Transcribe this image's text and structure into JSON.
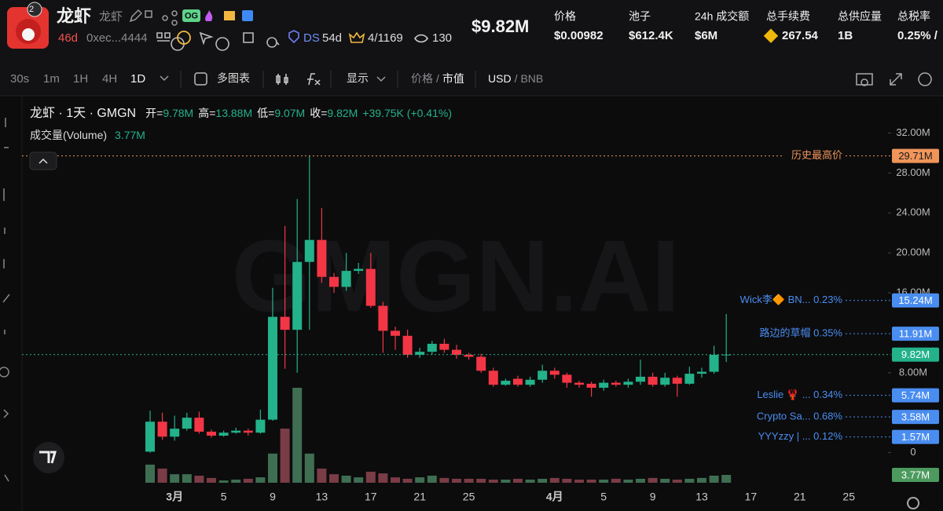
{
  "header": {
    "badge": "2",
    "title": "龙虾",
    "subtitle": "龙虾",
    "tag": "OG",
    "age": "46d",
    "address": "0xec...4444",
    "ds": "DS",
    "ds_age": "54d",
    "rank": "4/1169",
    "watchers": "130",
    "market_cap": "$9.82M",
    "stats": [
      {
        "label": "价格",
        "value": "$0.00982"
      },
      {
        "label": "池子",
        "value": "$612.4K"
      },
      {
        "label": "24h 成交额",
        "value": "$6M"
      },
      {
        "label": "总手续费",
        "value": "267.54"
      },
      {
        "label": "总供应量",
        "value": "1B"
      },
      {
        "label": "总税率",
        "value": "0.25% /"
      }
    ]
  },
  "toolbar": {
    "intervals": [
      "30s",
      "1m",
      "1H",
      "4H",
      "1D"
    ],
    "active_interval": 4,
    "multi_chart": "多图表",
    "display": "显示",
    "separator": "/",
    "price_toggle": [
      "价格",
      "市值"
    ],
    "currency_toggle": [
      "USD",
      "BNB"
    ]
  },
  "legend": {
    "symbol": "龙虾 · 1天 · GMGN",
    "ohlc": [
      {
        "label": "开=",
        "value": "9.78M"
      },
      {
        "label": "高=",
        "value": "13.88M"
      },
      {
        "label": "低=",
        "value": "9.07M"
      },
      {
        "label": "收=",
        "value": "9.82M"
      }
    ],
    "change": "+39.75K (+0.41%)",
    "volume_label": "成交量(Volume)",
    "volume_value": "3.77M",
    "watermark": "GMGN.AI"
  },
  "chart_data": {
    "type": "candlestick",
    "categories": [
      null,
      null,
      "3月",
      null,
      null,
      null,
      "5",
      null,
      null,
      null,
      "9",
      null,
      null,
      null,
      "13",
      null,
      null,
      null,
      "17",
      null,
      null,
      null,
      "21",
      null,
      null,
      null,
      "25",
      null,
      null,
      null,
      null,
      null,
      null,
      "4月",
      null,
      null,
      null,
      "5",
      null,
      null,
      null,
      "9",
      null,
      null,
      null,
      "13",
      null,
      null,
      null,
      "17",
      null,
      null,
      null,
      "21",
      null,
      null,
      null,
      "25"
    ],
    "open": [
      0.1,
      3.1,
      1.6,
      2.4,
      3.5,
      2.1,
      1.7,
      2.0,
      2.2,
      2.0,
      3.3,
      13.6,
      12.3,
      19.1,
      21.3,
      17.6,
      16.6,
      18.2,
      18.4,
      14.7,
      12.2,
      11.7,
      9.8,
      10.1,
      10.9,
      10.3,
      9.8,
      9.6,
      8.2,
      6.8,
      7.4,
      6.8,
      7.3,
      8.2,
      7.8,
      7.0,
      6.9,
      6.5,
      7.0,
      6.8,
      7.1,
      7.6,
      6.8,
      7.5,
      6.9,
      7.9,
      8.1,
      9.78,
      null,
      null,
      null,
      null,
      null,
      null,
      null,
      null,
      null,
      null
    ],
    "high": [
      4.2,
      4.0,
      3.7,
      4.0,
      4.1,
      2.3,
      2.2,
      2.5,
      2.4,
      4.3,
      16.5,
      22.7,
      25.4,
      29.71,
      24.5,
      18.0,
      20.0,
      19.0,
      20.0,
      15.1,
      12.6,
      12.3,
      10.5,
      11.2,
      11.4,
      10.8,
      10.0,
      9.9,
      8.5,
      7.4,
      7.7,
      7.6,
      8.8,
      8.5,
      8.0,
      7.2,
      7.1,
      7.3,
      7.2,
      7.4,
      9.3,
      8.0,
      8.0,
      7.7,
      8.6,
      8.5,
      10.7,
      13.88,
      null,
      null,
      null,
      null,
      null,
      null,
      null,
      null,
      null,
      null
    ],
    "low": [
      0.0,
      1.3,
      1.2,
      2.2,
      1.9,
      1.5,
      1.6,
      1.9,
      1.7,
      1.9,
      3.2,
      8.4,
      8.0,
      12.3,
      17.0,
      16.0,
      16.2,
      17.9,
      14.5,
      10.0,
      10.3,
      9.5,
      9.5,
      9.8,
      10.0,
      9.4,
      9.3,
      8.0,
      6.6,
      6.7,
      6.6,
      6.6,
      7.0,
      7.4,
      6.5,
      6.5,
      5.6,
      6.2,
      6.6,
      6.5,
      6.8,
      6.6,
      6.6,
      5.6,
      6.8,
      7.5,
      7.9,
      9.07,
      null,
      null,
      null,
      null,
      null,
      null,
      null,
      null,
      null,
      null
    ],
    "close": [
      3.1,
      1.6,
      2.4,
      3.5,
      2.1,
      1.7,
      2.0,
      2.2,
      2.0,
      3.3,
      13.6,
      12.3,
      19.1,
      21.3,
      17.6,
      16.6,
      18.2,
      18.4,
      14.7,
      12.2,
      11.7,
      9.8,
      10.1,
      10.9,
      10.3,
      9.8,
      9.6,
      8.2,
      6.8,
      7.2,
      6.8,
      7.3,
      8.2,
      7.8,
      7.0,
      6.8,
      6.5,
      7.0,
      6.8,
      7.1,
      7.6,
      6.8,
      7.5,
      6.9,
      7.9,
      8.1,
      9.8,
      9.82,
      null,
      null,
      null,
      null,
      null,
      null,
      null,
      null,
      null,
      null
    ],
    "volume": [
      8.7,
      6.8,
      4.1,
      4.1,
      3.4,
      2.3,
      1.1,
      1.5,
      1.9,
      2.6,
      14,
      26,
      45.6,
      14,
      6.8,
      4.1,
      3.4,
      2.6,
      5.3,
      4.5,
      2.6,
      1.9,
      2.6,
      3.4,
      2.3,
      1.9,
      1.9,
      1.9,
      1.5,
      1.5,
      1.9,
      1.5,
      1.9,
      2.3,
      1.9,
      1.5,
      1.5,
      1.5,
      1.9,
      1.5,
      1.9,
      2.3,
      1.9,
      1.5,
      1.9,
      2.3,
      3.4,
      3.77,
      null,
      null,
      null,
      null,
      null,
      null,
      null,
      null,
      null,
      null
    ],
    "up_color": "#23b28a",
    "down_color": "#f23645",
    "volume_up_color": "#3f6e53",
    "volume_down_color": "#7a3c46",
    "ylim": [
      -3.8,
      35.5
    ],
    "yticks": [
      0,
      {
        "value": 8,
        "label": "8.00M"
      },
      {
        "value": 16,
        "label": "16.00M"
      },
      {
        "value": 20,
        "label": "20.00M"
      },
      {
        "value": 24,
        "label": "24.00M"
      },
      {
        "value": 28,
        "label": "28.00M"
      },
      {
        "value": 32,
        "label": "32.00M"
      }
    ],
    "price_lines": [
      {
        "name": "历史最高价",
        "value": 29.71,
        "value_label": "29.71M",
        "color": "#f0955a"
      },
      {
        "name": "Wick李🔶 BN... 0.23%",
        "value": 15.24,
        "value_label": "15.24M",
        "color": "#4a8df0"
      },
      {
        "name": "路边的草帽 0.35%",
        "value": 11.91,
        "value_label": "11.91M",
        "color": "#4a8df0"
      },
      {
        "value": 9.82,
        "value_label": "9.82M",
        "color": "#23b28a"
      },
      {
        "name": "Leslie 🦞 ... 0.34%",
        "value": 5.74,
        "value_label": "5.74M",
        "color": "#4a8df0"
      },
      {
        "name": "Crypto Sa... 0.68%",
        "value": 3.58,
        "value_label": "3.58M",
        "color": "#4a8df0"
      },
      {
        "name": "YYYzzy | ... 0.12%",
        "value": 1.57,
        "value_label": "1.57M",
        "color": "#4a8df0"
      }
    ],
    "volume_tag": {
      "value": 3.77,
      "value_label": "3.77M",
      "color": "#4c9a5e"
    }
  }
}
